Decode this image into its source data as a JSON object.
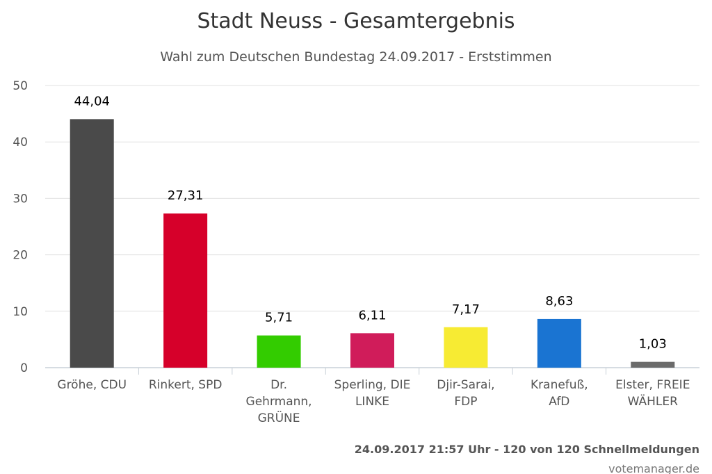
{
  "chart_data": {
    "type": "bar",
    "title": "Stadt Neuss - Gesamtergebnis",
    "subtitle": "Wahl zum Deutschen Bundestag 24.09.2017 - Erststimmen",
    "categories": [
      [
        "Gröhe, CDU"
      ],
      [
        "Rinkert, SPD"
      ],
      [
        "Dr.",
        "Gehrmann,",
        "GRÜNE"
      ],
      [
        "Sperling, DIE",
        "LINKE"
      ],
      [
        "Djir-Sarai,",
        "FDP"
      ],
      [
        "Kranefuß,",
        "AfD"
      ],
      [
        "Elster, FREIE",
        "WÄHLER"
      ]
    ],
    "values": [
      44.04,
      27.31,
      5.71,
      6.11,
      7.17,
      8.63,
      1.03
    ],
    "value_labels": [
      "44,04",
      "27,31",
      "5,71",
      "6,11",
      "7,17",
      "8,63",
      "1,03"
    ],
    "colors": [
      "#4a4a4a",
      "#d6002a",
      "#33cc00",
      "#d01c5a",
      "#f7eb33",
      "#1a74d2",
      "#6b6b6b"
    ],
    "ylim": [
      0,
      50
    ],
    "yticks": [
      0,
      10,
      20,
      30,
      40,
      50
    ],
    "grid": true,
    "legend": "none"
  },
  "footer": {
    "status": "24.09.2017 21:57 Uhr - 120 von 120 Schnellmeldungen",
    "credit": "votemanager.de"
  }
}
